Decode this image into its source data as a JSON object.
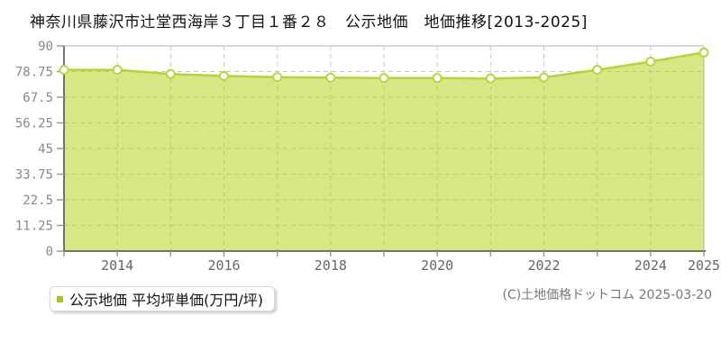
{
  "title": "神奈川県藤沢市辻堂西海岸３丁目１番２８　公示地価　地価推移[2013-2025]",
  "chart_data": {
    "type": "area",
    "x": [
      2013,
      2014,
      2015,
      2016,
      2017,
      2018,
      2019,
      2020,
      2021,
      2022,
      2023,
      2024,
      2025
    ],
    "series": [
      {
        "name": "公示地価 平均坪単価(万円/坪)",
        "values": [
          79.5,
          79.5,
          77.7,
          76.8,
          76.3,
          76.1,
          75.9,
          75.9,
          75.7,
          76.2,
          79.5,
          83.1,
          87.1
        ]
      }
    ],
    "title": "神奈川県藤沢市辻堂西海岸３丁目１番２８　公示地価　地価推移[2013-2025]",
    "xlabel": "",
    "ylabel": "平均坪単価(万円/坪)",
    "ylim": [
      0,
      90
    ],
    "yticks": [
      0,
      11.25,
      22.5,
      33.75,
      45,
      56.25,
      67.5,
      78.75,
      90
    ],
    "xtick_labels": [
      2014,
      2016,
      2018,
      2020,
      2022,
      2024,
      2025
    ],
    "grid": true,
    "legend_position": "bottom-left"
  },
  "legend": {
    "label": "公示地価 平均坪単価(万円/坪)",
    "marker_color": "#a5c916"
  },
  "footer": {
    "copyright": "(C)土地価格ドットコム 2025-03-20"
  },
  "colors": {
    "line": "#b5d435",
    "fill": "rgba(180,213,33,0.55)",
    "marker_fill": "#ffffff",
    "marker_ring": "#bcd53e",
    "grid": "#c6c6c6",
    "axis": "#4a4a4a",
    "tick": "#999999",
    "border": "#cccccc",
    "ytick_text": "#888888",
    "xtick_text": "#666666"
  }
}
